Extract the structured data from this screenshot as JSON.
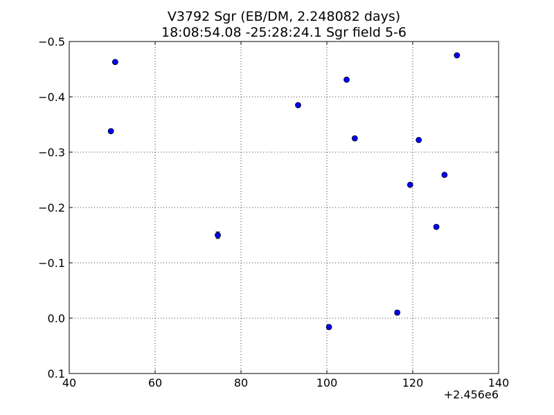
{
  "chart_data": {
    "type": "scatter",
    "title_line1": "V3792 Sgr (EB/DM, 2.248082 days)",
    "title_line2": "18:08:54.08 -25:28:24.1 Sgr field 5-6",
    "xlabel": "",
    "ylabel": "",
    "x_offset_label": "+2.456e6",
    "xlim": [
      40,
      140
    ],
    "ylim": [
      0.1,
      -0.5
    ],
    "y_inverted": true,
    "grid": true,
    "x_ticks": [
      {
        "value": 40,
        "label": "40"
      },
      {
        "value": 60,
        "label": "60"
      },
      {
        "value": 80,
        "label": "80"
      },
      {
        "value": 100,
        "label": "100"
      },
      {
        "value": 120,
        "label": "120"
      },
      {
        "value": 140,
        "label": "140"
      }
    ],
    "y_ticks": [
      {
        "value": -0.5,
        "label": "−0.5"
      },
      {
        "value": -0.4,
        "label": "−0.4"
      },
      {
        "value": -0.3,
        "label": "−0.3"
      },
      {
        "value": -0.2,
        "label": "−0.2"
      },
      {
        "value": -0.1,
        "label": "−0.1"
      },
      {
        "value": 0.0,
        "label": "0.0"
      },
      {
        "value": 0.1,
        "label": "0.1"
      }
    ],
    "marker_color": "#0000ff",
    "points": [
      {
        "x": 49.7,
        "y": -0.338,
        "err": 0.003
      },
      {
        "x": 50.7,
        "y": -0.463,
        "err": 0.003
      },
      {
        "x": 74.6,
        "y": -0.15,
        "err": 0.006
      },
      {
        "x": 93.3,
        "y": -0.385,
        "err": 0.003
      },
      {
        "x": 100.5,
        "y": 0.016,
        "err": 0.004
      },
      {
        "x": 104.6,
        "y": -0.431,
        "err": 0.003
      },
      {
        "x": 106.5,
        "y": -0.325,
        "err": 0.003
      },
      {
        "x": 116.4,
        "y": -0.01,
        "err": 0.004
      },
      {
        "x": 119.4,
        "y": -0.241,
        "err": 0.003
      },
      {
        "x": 121.4,
        "y": -0.322,
        "err": 0.003
      },
      {
        "x": 125.5,
        "y": -0.165,
        "err": 0.003
      },
      {
        "x": 127.4,
        "y": -0.259,
        "err": 0.003
      },
      {
        "x": 130.3,
        "y": -0.475,
        "err": 0.003
      }
    ]
  }
}
